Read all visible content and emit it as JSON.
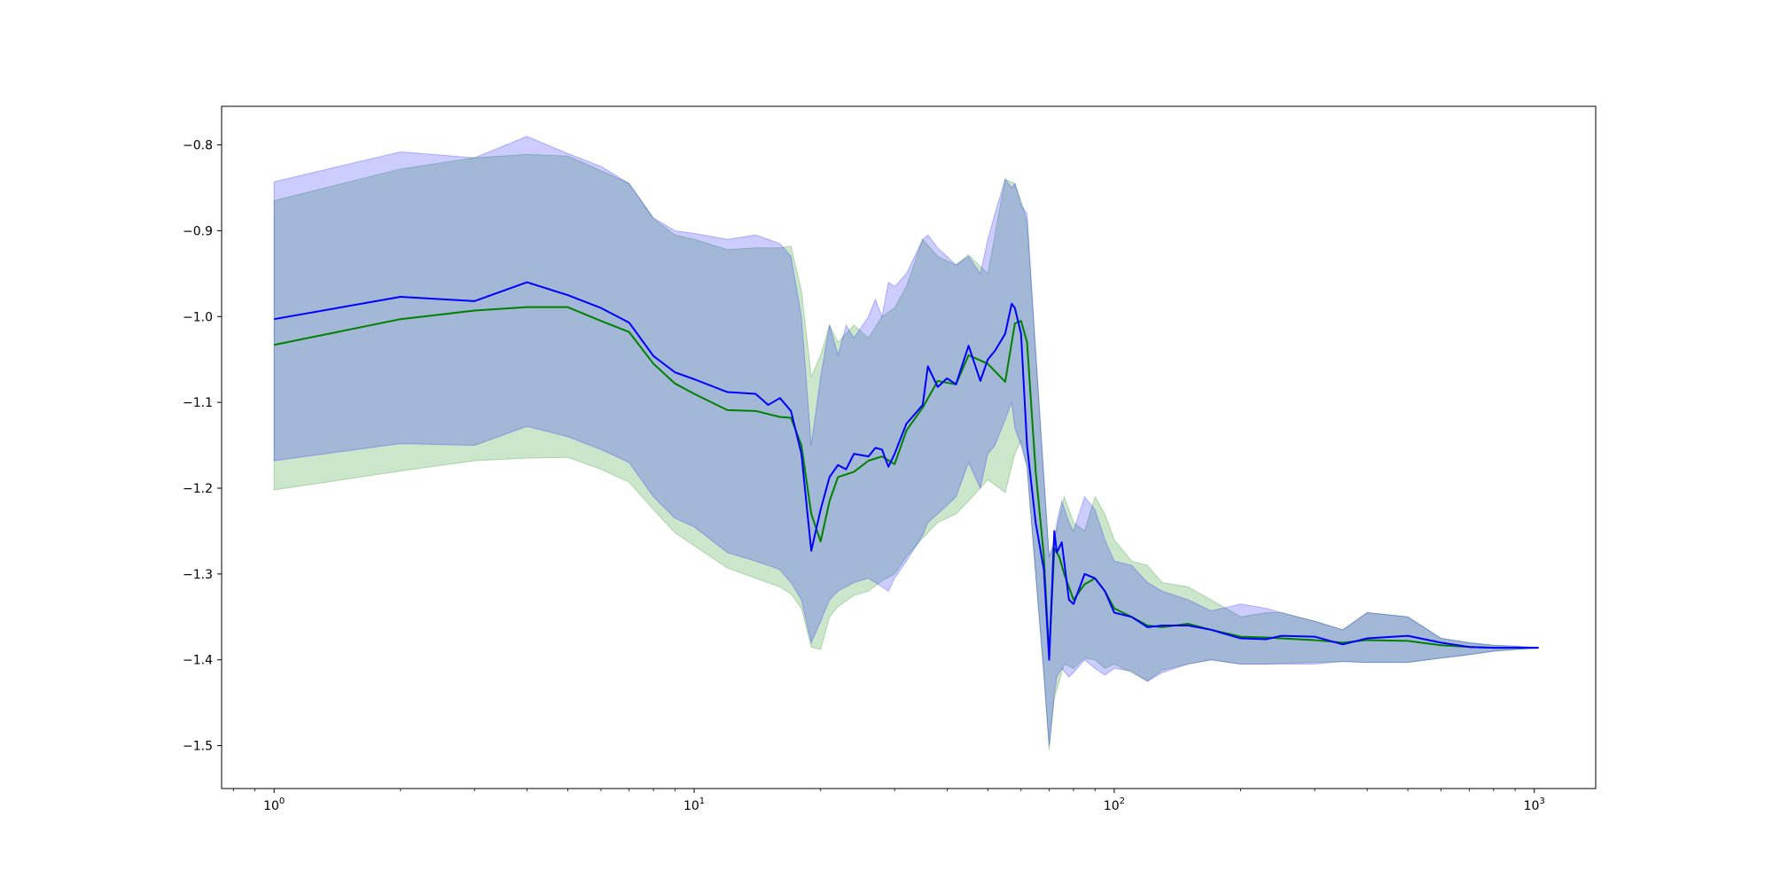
{
  "chart_data": {
    "type": "line",
    "title": "",
    "xlabel": "",
    "ylabel": "",
    "x_scale": "log",
    "xlim": [
      0.75,
      1400
    ],
    "ylim": [
      -1.55,
      -0.755
    ],
    "x_ticks": [
      {
        "value": 1,
        "base": "10",
        "exp": "0"
      },
      {
        "value": 10,
        "base": "10",
        "exp": "1"
      },
      {
        "value": 100,
        "base": "10",
        "exp": "2"
      },
      {
        "value": 1000,
        "base": "10",
        "exp": "3"
      }
    ],
    "y_ticks": [
      {
        "value": -0.8,
        "label": "−0.8"
      },
      {
        "value": -0.9,
        "label": "−0.9"
      },
      {
        "value": -1.0,
        "label": "−1.0"
      },
      {
        "value": -1.1,
        "label": "−1.1"
      },
      {
        "value": -1.2,
        "label": "−1.2"
      },
      {
        "value": -1.3,
        "label": "−1.3"
      },
      {
        "value": -1.4,
        "label": "−1.4"
      },
      {
        "value": -1.5,
        "label": "−1.5"
      }
    ],
    "grid": false,
    "legend": "none",
    "series": [
      {
        "color": "#008000",
        "band_color": "#008000",
        "band_opacity": 0.2,
        "x": [
          1,
          2,
          3,
          4,
          5,
          6,
          7,
          8,
          9,
          10,
          12,
          14,
          16,
          17,
          18,
          19,
          20,
          21,
          22,
          24,
          26,
          28,
          30,
          32,
          35,
          38,
          42,
          45,
          50,
          55,
          58,
          60,
          62,
          65,
          68,
          70,
          72,
          74,
          76,
          80,
          85,
          90,
          95,
          100,
          110,
          120,
          130,
          150,
          170,
          200,
          230,
          250,
          300,
          350,
          400,
          500,
          600,
          700,
          800,
          900,
          1024
        ],
        "y": [
          -1.033,
          -1.003,
          -0.993,
          -0.989,
          -0.989,
          -1.005,
          -1.018,
          -1.055,
          -1.078,
          -1.09,
          -1.109,
          -1.11,
          -1.117,
          -1.118,
          -1.15,
          -1.23,
          -1.262,
          -1.215,
          -1.187,
          -1.181,
          -1.168,
          -1.163,
          -1.172,
          -1.133,
          -1.106,
          -1.075,
          -1.079,
          -1.045,
          -1.055,
          -1.076,
          -1.008,
          -1.005,
          -1.03,
          -1.18,
          -1.28,
          -1.395,
          -1.27,
          -1.28,
          -1.3,
          -1.33,
          -1.312,
          -1.305,
          -1.32,
          -1.34,
          -1.35,
          -1.36,
          -1.362,
          -1.358,
          -1.365,
          -1.373,
          -1.374,
          -1.375,
          -1.377,
          -1.38,
          -1.377,
          -1.378,
          -1.383,
          -1.385,
          -1.386,
          -1.386,
          -1.386
        ],
        "upper": [
          -0.865,
          -0.828,
          -0.815,
          -0.811,
          -0.813,
          -0.83,
          -0.845,
          -0.886,
          -0.905,
          -0.91,
          -0.922,
          -0.92,
          -0.92,
          -0.918,
          -0.97,
          -1.07,
          -1.045,
          -1.01,
          -1.03,
          -1.01,
          -1.025,
          -1.0,
          -0.99,
          -0.965,
          -0.91,
          -0.93,
          -0.94,
          -0.928,
          -0.95,
          -0.84,
          -0.845,
          -0.865,
          -0.89,
          -1.04,
          -1.19,
          -1.28,
          -1.26,
          -1.235,
          -1.21,
          -1.24,
          -1.25,
          -1.21,
          -1.23,
          -1.26,
          -1.285,
          -1.29,
          -1.31,
          -1.315,
          -1.33,
          -1.35,
          -1.345,
          -1.345,
          -1.355,
          -1.365,
          -1.345,
          -1.35,
          -1.375,
          -1.38,
          -1.383,
          -1.384,
          -1.386
        ],
        "lower": [
          -1.202,
          -1.18,
          -1.168,
          -1.165,
          -1.164,
          -1.178,
          -1.193,
          -1.225,
          -1.252,
          -1.267,
          -1.293,
          -1.305,
          -1.315,
          -1.323,
          -1.34,
          -1.385,
          -1.388,
          -1.35,
          -1.338,
          -1.325,
          -1.32,
          -1.308,
          -1.3,
          -1.28,
          -1.258,
          -1.24,
          -1.23,
          -1.215,
          -1.19,
          -1.205,
          -1.16,
          -1.145,
          -1.175,
          -1.3,
          -1.42,
          -1.505,
          -1.445,
          -1.425,
          -1.405,
          -1.41,
          -1.398,
          -1.4,
          -1.41,
          -1.405,
          -1.415,
          -1.425,
          -1.412,
          -1.405,
          -1.4,
          -1.405,
          -1.405,
          -1.404,
          -1.403,
          -1.402,
          -1.403,
          -1.403,
          -1.398,
          -1.394,
          -1.39,
          -1.388,
          -1.386
        ]
      },
      {
        "color": "#0000ff",
        "band_color": "#0000ff",
        "band_opacity": 0.2,
        "x": [
          1,
          2,
          3,
          4,
          5,
          6,
          7,
          8,
          9,
          10,
          12,
          14,
          15,
          16,
          17,
          18,
          19,
          20,
          21,
          22,
          23,
          24,
          26,
          27,
          28,
          29,
          30,
          32,
          35,
          36,
          38,
          40,
          42,
          45,
          48,
          50,
          52,
          55,
          57,
          58,
          60,
          62,
          65,
          68,
          70,
          72,
          73,
          75,
          78,
          80,
          85,
          90,
          95,
          100,
          110,
          120,
          130,
          150,
          170,
          200,
          230,
          250,
          300,
          350,
          400,
          500,
          600,
          700,
          800,
          900,
          1024
        ],
        "y": [
          -1.003,
          -0.977,
          -0.982,
          -0.96,
          -0.975,
          -0.99,
          -1.007,
          -1.046,
          -1.065,
          -1.073,
          -1.088,
          -1.09,
          -1.103,
          -1.095,
          -1.11,
          -1.16,
          -1.273,
          -1.225,
          -1.187,
          -1.173,
          -1.178,
          -1.16,
          -1.163,
          -1.153,
          -1.155,
          -1.175,
          -1.16,
          -1.125,
          -1.103,
          -1.058,
          -1.082,
          -1.072,
          -1.079,
          -1.034,
          -1.075,
          -1.05,
          -1.04,
          -1.02,
          -0.985,
          -0.99,
          -1.02,
          -1.15,
          -1.24,
          -1.295,
          -1.4,
          -1.25,
          -1.275,
          -1.263,
          -1.33,
          -1.335,
          -1.3,
          -1.305,
          -1.32,
          -1.345,
          -1.35,
          -1.362,
          -1.36,
          -1.36,
          -1.365,
          -1.375,
          -1.376,
          -1.372,
          -1.373,
          -1.382,
          -1.375,
          -1.372,
          -1.38,
          -1.385,
          -1.386,
          -1.386,
          -1.386
        ],
        "upper": [
          -0.843,
          -0.808,
          -0.815,
          -0.79,
          -0.81,
          -0.825,
          -0.845,
          -0.885,
          -0.9,
          -0.903,
          -0.91,
          -0.905,
          -0.91,
          -0.915,
          -0.93,
          -1.0,
          -1.15,
          -1.07,
          -1.01,
          -1.045,
          -1.01,
          -1.025,
          -1.0,
          -0.98,
          -1.0,
          -0.96,
          -0.965,
          -0.95,
          -0.91,
          -0.905,
          -0.92,
          -0.93,
          -0.94,
          -0.93,
          -0.95,
          -0.91,
          -0.88,
          -0.84,
          -0.85,
          -0.845,
          -0.87,
          -0.88,
          -1.04,
          -1.185,
          -1.28,
          -1.265,
          -1.24,
          -1.215,
          -1.24,
          -1.25,
          -1.21,
          -1.225,
          -1.26,
          -1.285,
          -1.29,
          -1.31,
          -1.32,
          -1.33,
          -1.343,
          -1.335,
          -1.34,
          -1.345,
          -1.355,
          -1.365,
          -1.345,
          -1.35,
          -1.375,
          -1.38,
          -1.383,
          -1.384,
          -1.386
        ],
        "lower": [
          -1.168,
          -1.148,
          -1.15,
          -1.128,
          -1.14,
          -1.155,
          -1.17,
          -1.21,
          -1.235,
          -1.245,
          -1.275,
          -1.285,
          -1.29,
          -1.295,
          -1.31,
          -1.33,
          -1.38,
          -1.355,
          -1.33,
          -1.32,
          -1.315,
          -1.31,
          -1.305,
          -1.31,
          -1.315,
          -1.32,
          -1.305,
          -1.285,
          -1.255,
          -1.24,
          -1.23,
          -1.22,
          -1.21,
          -1.17,
          -1.2,
          -1.16,
          -1.15,
          -1.12,
          -1.1,
          -1.13,
          -1.15,
          -1.175,
          -1.3,
          -1.415,
          -1.5,
          -1.44,
          -1.42,
          -1.41,
          -1.42,
          -1.415,
          -1.4,
          -1.41,
          -1.418,
          -1.41,
          -1.413,
          -1.425,
          -1.415,
          -1.405,
          -1.4,
          -1.405,
          -1.405,
          -1.405,
          -1.405,
          -1.402,
          -1.403,
          -1.403,
          -1.398,
          -1.394,
          -1.39,
          -1.388,
          -1.386
        ]
      }
    ]
  }
}
